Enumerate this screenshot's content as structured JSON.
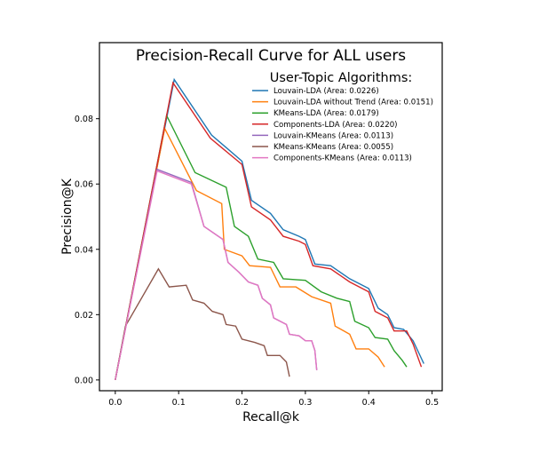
{
  "chart_data": {
    "type": "line",
    "title": "Precision-Recall Curve for ALL users",
    "xlabel": "Recall@k",
    "ylabel": "Precision@K",
    "xlim": [
      -0.025,
      0.516
    ],
    "ylim": [
      -0.0033,
      0.1033
    ],
    "xticks": [
      0.0,
      0.1,
      0.2,
      0.3,
      0.4,
      0.5
    ],
    "xtick_labels": [
      "0.0",
      "0.1",
      "0.2",
      "0.3",
      "0.4",
      "0.5"
    ],
    "yticks": [
      0.0,
      0.02,
      0.04,
      0.06,
      0.08
    ],
    "ytick_labels": [
      "0.00",
      "0.02",
      "0.04",
      "0.06",
      "0.08"
    ],
    "grid": false,
    "legend_title": "User-Topic Algorithms:",
    "legend_position": "top-right",
    "series": [
      {
        "name": "Louvain-LDA (Area: 0.0226)",
        "color": "#1f77b4",
        "x": [
          0,
          0.093,
          0.152,
          0.2,
          0.215,
          0.245,
          0.265,
          0.29,
          0.3,
          0.315,
          0.34,
          0.37,
          0.4,
          0.415,
          0.43,
          0.44,
          0.455,
          0.47,
          0.487
        ],
        "y": [
          0,
          0.092,
          0.075,
          0.067,
          0.055,
          0.051,
          0.046,
          0.044,
          0.043,
          0.0355,
          0.035,
          0.031,
          0.028,
          0.022,
          0.02,
          0.016,
          0.0155,
          0.012,
          0.005
        ]
      },
      {
        "name": "Louvain-LDA without Trend (Area: 0.0151)",
        "color": "#ff7f0e",
        "x": [
          0,
          0.078,
          0.128,
          0.168,
          0.172,
          0.2,
          0.212,
          0.245,
          0.26,
          0.285,
          0.31,
          0.34,
          0.347,
          0.37,
          0.38,
          0.4,
          0.415,
          0.425
        ],
        "y": [
          0,
          0.077,
          0.058,
          0.054,
          0.04,
          0.038,
          0.035,
          0.0345,
          0.0285,
          0.0285,
          0.0255,
          0.0235,
          0.0165,
          0.014,
          0.0095,
          0.0095,
          0.007,
          0.004
        ]
      },
      {
        "name": "KMeans-LDA (Area: 0.0179)",
        "color": "#2ca02c",
        "x": [
          0,
          0.081,
          0.126,
          0.175,
          0.188,
          0.21,
          0.225,
          0.25,
          0.265,
          0.3,
          0.325,
          0.35,
          0.37,
          0.378,
          0.4,
          0.41,
          0.43,
          0.44,
          0.453,
          0.46
        ],
        "y": [
          0,
          0.081,
          0.0635,
          0.059,
          0.047,
          0.044,
          0.037,
          0.036,
          0.031,
          0.0305,
          0.027,
          0.025,
          0.024,
          0.018,
          0.016,
          0.013,
          0.0125,
          0.009,
          0.006,
          0.004
        ]
      },
      {
        "name": "Components-LDA (Area: 0.0220)",
        "color": "#d62728",
        "x": [
          0,
          0.091,
          0.15,
          0.2,
          0.215,
          0.245,
          0.265,
          0.29,
          0.3,
          0.312,
          0.34,
          0.37,
          0.4,
          0.41,
          0.43,
          0.44,
          0.46,
          0.47,
          0.483
        ],
        "y": [
          0,
          0.091,
          0.074,
          0.066,
          0.053,
          0.049,
          0.044,
          0.0425,
          0.0415,
          0.035,
          0.034,
          0.03,
          0.027,
          0.021,
          0.019,
          0.015,
          0.015,
          0.011,
          0.004
        ]
      },
      {
        "name": "Louvain-KMeans (Area: 0.0113)",
        "color": "#9467bd",
        "x": [
          0,
          0.066,
          0.12,
          0.14,
          0.17,
          0.178,
          0.195,
          0.21,
          0.225,
          0.232,
          0.245,
          0.25,
          0.27,
          0.275,
          0.29,
          0.3,
          0.31,
          0.315,
          0.318
        ],
        "y": [
          0,
          0.0645,
          0.0605,
          0.047,
          0.043,
          0.036,
          0.033,
          0.03,
          0.029,
          0.025,
          0.023,
          0.019,
          0.017,
          0.014,
          0.0135,
          0.012,
          0.012,
          0.009,
          0.003
        ]
      },
      {
        "name": "KMeans-KMeans (Area: 0.0055)",
        "color": "#8c564b",
        "x": [
          0,
          0.016,
          0.068,
          0.085,
          0.112,
          0.122,
          0.14,
          0.153,
          0.17,
          0.175,
          0.19,
          0.2,
          0.22,
          0.235,
          0.24,
          0.26,
          0.27,
          0.275
        ],
        "y": [
          0,
          0.0165,
          0.034,
          0.0285,
          0.029,
          0.0245,
          0.0235,
          0.021,
          0.02,
          0.017,
          0.0165,
          0.0125,
          0.0115,
          0.0105,
          0.0075,
          0.0075,
          0.0055,
          0.001
        ]
      },
      {
        "name": "Components-KMeans (Area: 0.0113)",
        "color": "#e377c2",
        "x": [
          0,
          0.066,
          0.12,
          0.14,
          0.17,
          0.178,
          0.195,
          0.21,
          0.225,
          0.232,
          0.245,
          0.25,
          0.27,
          0.275,
          0.29,
          0.3,
          0.31,
          0.315,
          0.318
        ],
        "y": [
          0,
          0.064,
          0.06,
          0.047,
          0.043,
          0.036,
          0.033,
          0.03,
          0.029,
          0.025,
          0.023,
          0.019,
          0.017,
          0.014,
          0.0135,
          0.012,
          0.012,
          0.009,
          0.003
        ]
      }
    ]
  }
}
